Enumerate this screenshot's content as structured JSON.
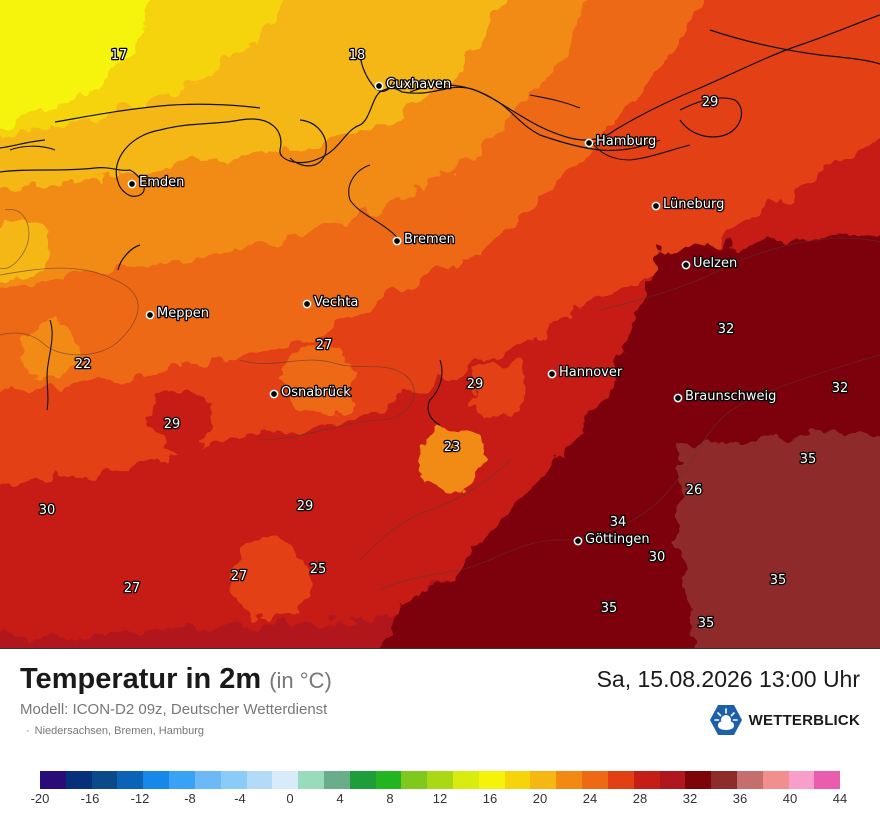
{
  "map": {
    "cities": [
      {
        "name": "Cuxhaven"
      },
      {
        "name": "Hamburg"
      },
      {
        "name": "Emden"
      },
      {
        "name": "Lüneburg"
      },
      {
        "name": "Bremen"
      },
      {
        "name": "Uelzen"
      },
      {
        "name": "Vechta"
      },
      {
        "name": "Meppen"
      },
      {
        "name": "Hannover"
      },
      {
        "name": "Osnabrück"
      },
      {
        "name": "Braunschweig"
      },
      {
        "name": "Göttingen"
      }
    ],
    "values": [
      "17",
      "18",
      "29",
      "22",
      "27",
      "29",
      "32",
      "32",
      "29",
      "23",
      "35",
      "30",
      "29",
      "26",
      "34",
      "30",
      "27",
      "27",
      "25",
      "35",
      "35",
      "35"
    ]
  },
  "footer": {
    "title": "Temperatur in 2m",
    "unit": "(in °C)",
    "datetime": "Sa, 15.08.2026 13:00 Uhr",
    "model": "Modell: ICON-D2 09z, Deutscher Wetterdienst",
    "region_separator": "·",
    "region": "Niedersachsen, Bremen, Hamburg",
    "brand": "WETTERBLICK",
    "brand_icon": "sun-cloud-logo-icon"
  },
  "legend": {
    "colors": [
      "#2a0b7a",
      "#06307a",
      "#0a4a8a",
      "#0b63b8",
      "#1689e8",
      "#3aa2f5",
      "#6bbaf7",
      "#8ccaf7",
      "#b3dbf9",
      "#d8ebfb",
      "#98dcbb",
      "#69ad8a",
      "#1e9e3a",
      "#22b51f",
      "#7ec91c",
      "#abd815",
      "#d9ec10",
      "#f6f30b",
      "#f5d40c",
      "#f5b712",
      "#f28a12",
      "#ee6914",
      "#e33f14",
      "#c71d17",
      "#b0161d",
      "#7d0409",
      "#8e2c2c",
      "#c46e6e",
      "#f28e8e",
      "#f79ec9",
      "#ec5cae"
    ],
    "ticks": [
      "-20",
      "-16",
      "-12",
      "-8",
      "-4",
      "0",
      "4",
      "8",
      "12",
      "16",
      "20",
      "24",
      "28",
      "32",
      "36",
      "40",
      "44"
    ]
  }
}
